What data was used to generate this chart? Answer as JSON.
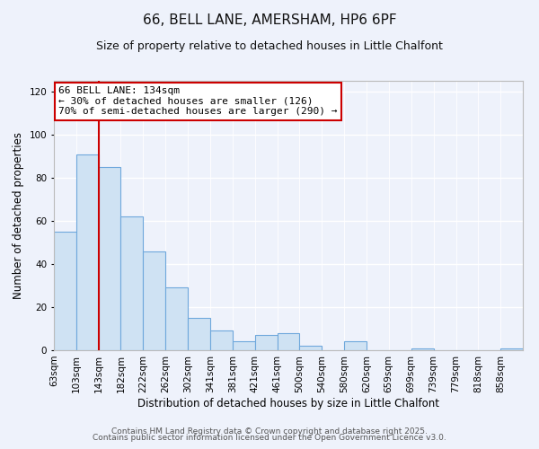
{
  "title": "66, BELL LANE, AMERSHAM, HP6 6PF",
  "subtitle": "Size of property relative to detached houses in Little Chalfont",
  "xlabel": "Distribution of detached houses by size in Little Chalfont",
  "ylabel": "Number of detached properties",
  "bar_values": [
    55,
    91,
    85,
    62,
    46,
    29,
    15,
    9,
    4,
    7,
    8,
    2,
    0,
    4,
    0,
    0,
    1,
    0,
    0,
    0,
    1
  ],
  "bar_labels": [
    "63sqm",
    "103sqm",
    "143sqm",
    "182sqm",
    "222sqm",
    "262sqm",
    "302sqm",
    "341sqm",
    "381sqm",
    "421sqm",
    "461sqm",
    "500sqm",
    "540sqm",
    "580sqm",
    "620sqm",
    "659sqm",
    "699sqm",
    "739sqm",
    "779sqm",
    "818sqm",
    "858sqm"
  ],
  "bin_edges": [
    63,
    103,
    143,
    182,
    222,
    262,
    302,
    341,
    381,
    421,
    461,
    500,
    540,
    580,
    620,
    659,
    699,
    739,
    779,
    818,
    858,
    898
  ],
  "bar_color": "#cfe2f3",
  "bar_edge_color": "#6fa8dc",
  "vline_x": 143,
  "vline_color": "#cc0000",
  "ylim": [
    0,
    125
  ],
  "yticks": [
    0,
    20,
    40,
    60,
    80,
    100,
    120
  ],
  "annotation_title": "66 BELL LANE: 134sqm",
  "annotation_line1": "← 30% of detached houses are smaller (126)",
  "annotation_line2": "70% of semi-detached houses are larger (290) →",
  "annotation_box_color": "#ffffff",
  "annotation_box_edge_color": "#cc0000",
  "footer1": "Contains HM Land Registry data © Crown copyright and database right 2025.",
  "footer2": "Contains public sector information licensed under the Open Government Licence v3.0.",
  "background_color": "#eef2fb",
  "grid_color": "#ffffff",
  "title_fontsize": 11,
  "subtitle_fontsize": 9,
  "axis_label_fontsize": 8.5,
  "tick_fontsize": 7.5,
  "annotation_fontsize": 8,
  "footer_fontsize": 6.5
}
